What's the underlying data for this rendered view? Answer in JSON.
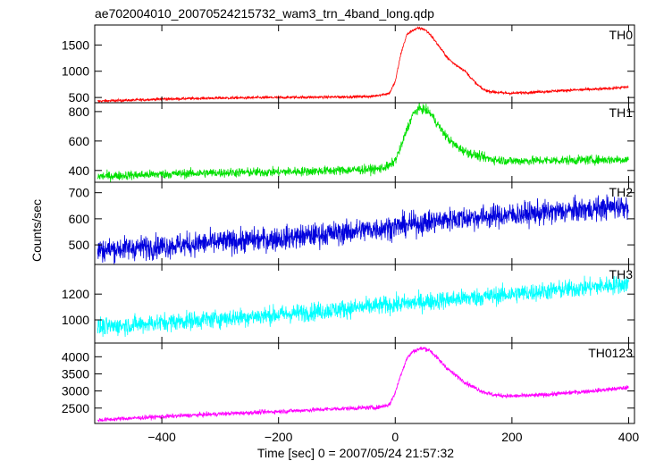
{
  "chart_data": {
    "type": "line",
    "title": "ae702004010_20070524215732_wam3_trn_4band_long.qdp",
    "xlabel": "Time [sec] 0 = 2007/05/24 21:57:32",
    "ylabel": "Counts/sec",
    "xlim": [
      -515,
      410
    ],
    "x_ticks": [
      -400,
      -200,
      0,
      200,
      400
    ],
    "x_tick_labels": [
      "−400",
      "−200",
      "0",
      "200",
      "400"
    ],
    "shared_x": true,
    "grid": false,
    "legend": "none",
    "panels": [
      {
        "name": "TH0",
        "color": "#ff0000",
        "ylim": [
          400,
          1880
        ],
        "y_ticks": [
          500,
          1000,
          1500
        ],
        "noise": 18,
        "series": {
          "x": [
            -510,
            -450,
            -400,
            -300,
            -200,
            -100,
            -40,
            -10,
            0,
            10,
            20,
            30,
            40,
            50,
            60,
            70,
            80,
            90,
            100,
            110,
            120,
            130,
            140,
            150,
            160,
            180,
            200,
            250,
            300,
            350,
            400
          ],
          "y": [
            430,
            450,
            470,
            490,
            500,
            510,
            520,
            580,
            800,
            1350,
            1700,
            1780,
            1820,
            1800,
            1700,
            1550,
            1400,
            1250,
            1150,
            1080,
            1000,
            870,
            750,
            660,
            620,
            590,
            580,
            610,
            640,
            660,
            700
          ]
        }
      },
      {
        "name": "TH1",
        "color": "#00e000",
        "ylim": [
          320,
          860
        ],
        "y_ticks": [
          400,
          600,
          800
        ],
        "noise": 22,
        "series": {
          "x": [
            -510,
            -400,
            -300,
            -200,
            -100,
            -30,
            -10,
            0,
            10,
            20,
            30,
            40,
            50,
            60,
            70,
            80,
            90,
            100,
            110,
            120,
            140,
            160,
            180,
            200,
            300,
            400
          ],
          "y": [
            360,
            375,
            385,
            390,
            400,
            410,
            430,
            470,
            560,
            680,
            780,
            820,
            815,
            790,
            730,
            670,
            620,
            580,
            550,
            530,
            500,
            480,
            470,
            465,
            470,
            475
          ]
        }
      },
      {
        "name": "TH2",
        "color": "#0000dd",
        "ylim": [
          425,
          740
        ],
        "y_ticks": [
          500,
          600,
          700
        ],
        "noise": 32,
        "series": {
          "x": [
            -510,
            -400,
            -300,
            -200,
            -100,
            0,
            100,
            200,
            300,
            400
          ],
          "y": [
            480,
            495,
            510,
            525,
            545,
            570,
            600,
            615,
            630,
            650
          ]
        }
      },
      {
        "name": "TH3",
        "color": "#00ffff",
        "ylim": [
          820,
          1430
        ],
        "y_ticks": [
          1000,
          1200
        ],
        "noise": 50,
        "series": {
          "x": [
            -510,
            -400,
            -300,
            -200,
            -100,
            0,
            100,
            200,
            300,
            400
          ],
          "y": [
            940,
            980,
            1010,
            1040,
            1080,
            1120,
            1160,
            1200,
            1240,
            1280
          ]
        }
      },
      {
        "name": "TH0123",
        "color": "#ff00ff",
        "ylim": [
          2050,
          4400
        ],
        "y_ticks": [
          2500,
          3000,
          3500,
          4000
        ],
        "noise": 45,
        "series": {
          "x": [
            -510,
            -400,
            -300,
            -200,
            -100,
            -30,
            -10,
            0,
            10,
            20,
            30,
            40,
            50,
            60,
            70,
            80,
            90,
            100,
            110,
            120,
            130,
            150,
            170,
            200,
            250,
            300,
            350,
            400
          ],
          "y": [
            2150,
            2250,
            2330,
            2400,
            2480,
            2520,
            2600,
            2950,
            3500,
            3950,
            4150,
            4220,
            4250,
            4180,
            4000,
            3820,
            3650,
            3500,
            3380,
            3250,
            3150,
            2980,
            2880,
            2850,
            2880,
            2950,
            3020,
            3100
          ]
        }
      }
    ]
  }
}
